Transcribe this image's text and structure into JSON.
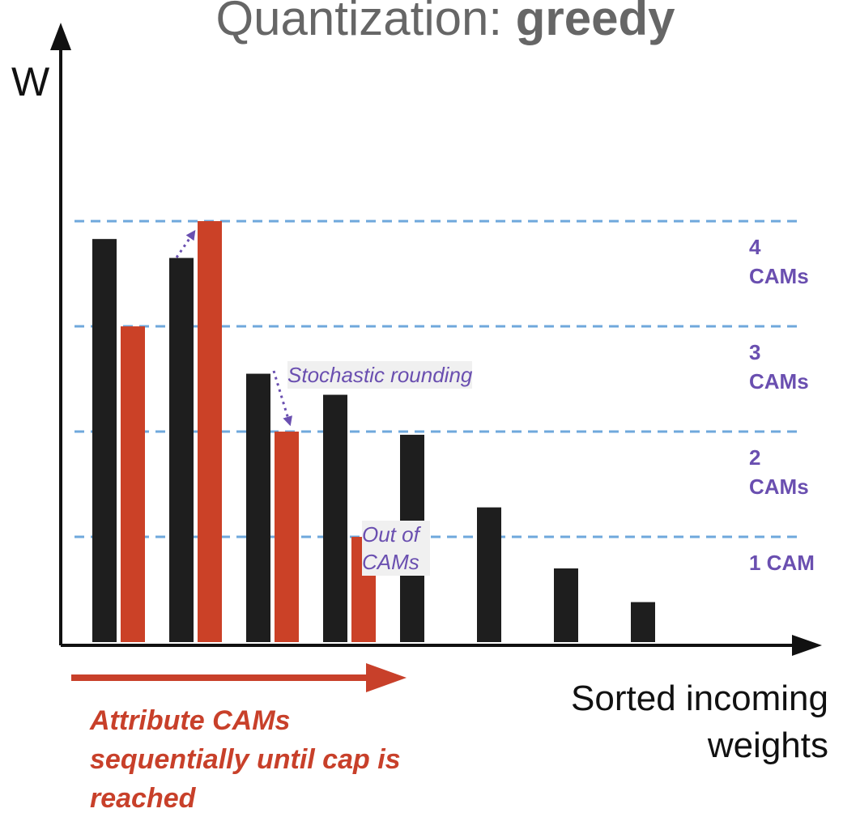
{
  "chart_data": {
    "type": "bar",
    "title": "Quantization:",
    "title_emphasis": "greedy",
    "y_label": "W",
    "x_label": "Sorted incoming weights",
    "categories": [
      null,
      null,
      null,
      null,
      null,
      null,
      null,
      null
    ],
    "series": [
      {
        "color": "#1e1e1e",
        "values": [
          3.83,
          3.65,
          2.55,
          2.35,
          1.97,
          1.28,
          0.7,
          0.38
        ]
      },
      {
        "color": "#cb4127",
        "values": [
          3,
          4,
          2,
          1,
          null,
          null,
          null,
          null
        ]
      }
    ],
    "ylim": [
      0,
      5.87
    ],
    "levels": [
      {
        "value": 4,
        "label": [
          "4",
          "CAMs"
        ]
      },
      {
        "value": 3,
        "label": [
          "3",
          "CAMs"
        ]
      },
      {
        "value": 2,
        "label": [
          "2",
          "CAMs"
        ]
      },
      {
        "value": 1,
        "label": [
          "1 CAM"
        ]
      }
    ],
    "level_color": "#6fa8dc",
    "annotations": [
      "Stochastic rounding",
      "Out of CAMs"
    ],
    "note": [
      "Attribute CAMs",
      "sequentially until cap is",
      "reached"
    ]
  }
}
